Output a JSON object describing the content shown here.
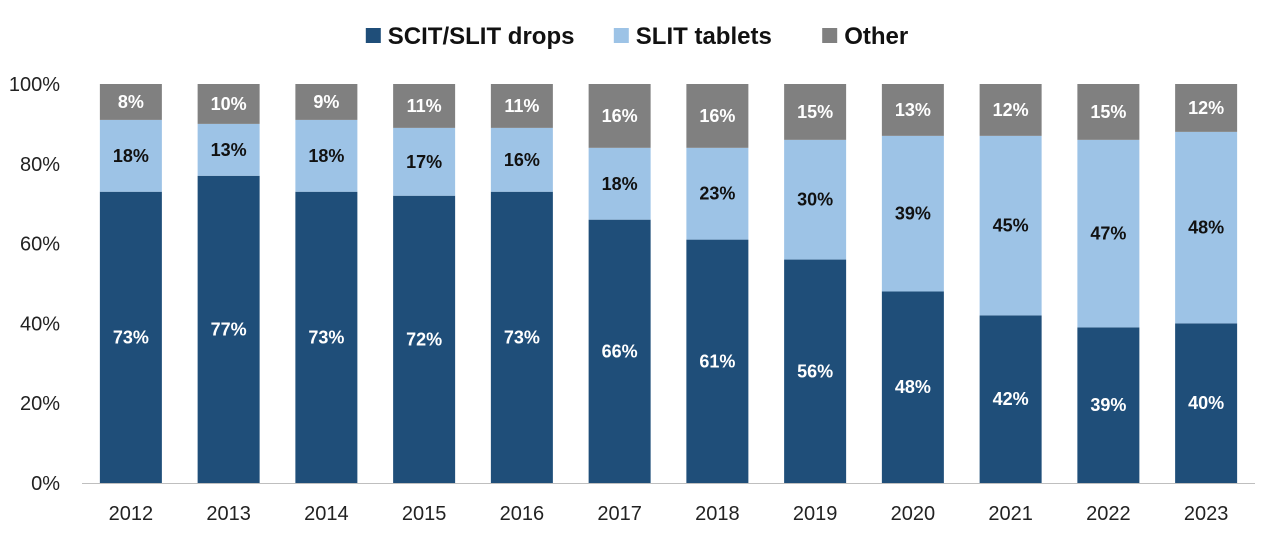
{
  "chart_data": {
    "type": "bar",
    "stacked": true,
    "categories": [
      "2012",
      "2013",
      "2014",
      "2015",
      "2016",
      "2017",
      "2018",
      "2019",
      "2020",
      "2021",
      "2022",
      "2023"
    ],
    "series": [
      {
        "name": "SCIT/SLIT drops",
        "color": "#1f4e79",
        "label_color": "#ffffff",
        "values": [
          73,
          77,
          73,
          72,
          73,
          66,
          61,
          56,
          48,
          42,
          39,
          40
        ]
      },
      {
        "name": "SLIT tablets",
        "color": "#9dc3e6",
        "label_color": "#111111",
        "values": [
          18,
          13,
          18,
          17,
          16,
          18,
          23,
          30,
          39,
          45,
          47,
          48
        ]
      },
      {
        "name": "Other",
        "color": "#808080",
        "label_color": "#ffffff",
        "values": [
          8,
          10,
          9,
          11,
          11,
          16,
          16,
          15,
          13,
          12,
          15,
          12
        ]
      }
    ],
    "y_ticks": [
      "0%",
      "20%",
      "40%",
      "60%",
      "80%",
      "100%"
    ],
    "ylim": [
      0,
      100
    ],
    "legend_position": "top-center",
    "grid": false,
    "value_suffix": "%"
  }
}
